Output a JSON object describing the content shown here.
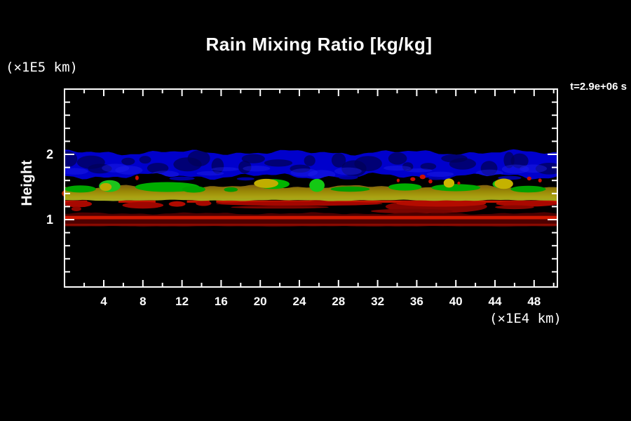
{
  "title": "Rain Mixing Ratio [kg/kg]",
  "timestamp": "t=2.9e+06 s",
  "y_axis": {
    "label": "Height",
    "unit": "(×1E5 km)",
    "range": [
      0,
      3
    ],
    "major_ticks": [
      1,
      2
    ],
    "minor_step": 0.2
  },
  "x_axis": {
    "unit": "(×1E4 km)",
    "range": [
      0,
      50.4
    ],
    "major_ticks": [
      4,
      8,
      12,
      16,
      20,
      24,
      28,
      32,
      36,
      40,
      44,
      48
    ],
    "minor_step": 2
  },
  "chart_data": {
    "type": "heatmap",
    "description": "Horizontal cross-section of rain mixing ratio isosurface bands vs height; x in 1E4 km, height in 1E5 km, at t=2.9e+06 s",
    "title": "Rain Mixing Ratio [kg/kg]",
    "xlabel": "(×1E4 km)",
    "ylabel": "Height (×1E5 km)",
    "x_range": [
      0,
      50.4
    ],
    "y_range": [
      0,
      3
    ],
    "grid": false,
    "legend": "none",
    "bands": [
      {
        "name": "upper-blue-cloud-band",
        "y_top": 2.03,
        "y_bottom": 1.665,
        "color": "#0000cc",
        "dark_mottle": "#000058",
        "bright_mottle": "#2222f0",
        "top_seed": 1,
        "bot_seed": 7,
        "top_amp": 0.05,
        "bot_amp": 0.06
      },
      {
        "name": "mid-olive-yellow-band",
        "y_top": 1.505,
        "y_bottom": 1.295,
        "gradient": [
          "#7e5c10",
          "#998806",
          "#aaa212",
          "#a2aa20"
        ],
        "top_seed": 3,
        "bot_seed": 11,
        "top_amp": 0.032,
        "bot_amp": 0.012
      },
      {
        "name": "lower-dark-red-band",
        "y_top": 1.095,
        "y_bottom": 0.895,
        "color": "#4c0000",
        "top_seed": 5,
        "bot_seed": 9,
        "top_amp": 0.02,
        "bot_amp": 0.006,
        "bright_line": {
          "y_top": 1.057,
          "y_bottom": 1.005,
          "color": "#d01800"
        },
        "second_line": {
          "y_top": 0.938,
          "y_bottom": 0.906,
          "color": "#8a0a00"
        }
      }
    ],
    "red_underline": {
      "y_top": 1.294,
      "y_bottom": 1.26,
      "color": "#c41400",
      "segments": [
        [
          0,
          2.3
        ],
        [
          5.5,
          9.3
        ],
        [
          12.5,
          14.8
        ],
        [
          15.5,
          50.4
        ]
      ]
    },
    "blue_wisps": {
      "color": "#0000b0",
      "items": [
        [
          12,
          1.63,
          1.3,
          0.03
        ],
        [
          18.5,
          1.625,
          0.9,
          0.025
        ],
        [
          29,
          1.645,
          1.0,
          0.03
        ],
        [
          38,
          1.632,
          0.8,
          0.025
        ],
        [
          45.5,
          1.64,
          1.2,
          0.03
        ]
      ]
    },
    "green_patches": [
      [
        1.6,
        1.47,
        1.6,
        0.055,
        "#00a400"
      ],
      [
        4.6,
        1.515,
        1.1,
        0.09,
        "#1cc41c"
      ],
      [
        10.5,
        1.5,
        3.3,
        0.075,
        "#00ac00"
      ],
      [
        13.2,
        1.465,
        1.2,
        0.05,
        "#00a400"
      ],
      [
        17.0,
        1.46,
        0.7,
        0.035,
        "#009800"
      ],
      [
        21.3,
        1.545,
        1.7,
        0.075,
        "#00b400"
      ],
      [
        25.8,
        1.525,
        0.78,
        0.1,
        "#14c814"
      ],
      [
        29.2,
        1.468,
        2.0,
        0.04,
        "#009c00"
      ],
      [
        34.8,
        1.5,
        1.7,
        0.055,
        "#00ae00"
      ],
      [
        40.0,
        1.49,
        2.5,
        0.055,
        "#00a800"
      ],
      [
        44.6,
        1.545,
        0.85,
        0.065,
        "#12bc12"
      ],
      [
        47.4,
        1.468,
        1.8,
        0.05,
        "#00a000"
      ]
    ],
    "yellow_patches": [
      [
        20.6,
        1.555,
        1.25,
        0.07,
        "#c0ae00"
      ],
      [
        39.3,
        1.56,
        0.55,
        0.07,
        "#ccb800"
      ],
      [
        44.9,
        1.55,
        0.95,
        0.08,
        "#c4b200"
      ],
      [
        4.2,
        1.5,
        0.6,
        0.06,
        "#bca800"
      ]
    ],
    "red_specks": {
      "color": "#cc1000",
      "items": [
        [
          7.4,
          1.64,
          0.18,
          0.035
        ],
        [
          34.1,
          1.6,
          0.15,
          0.027
        ],
        [
          35.6,
          1.62,
          0.26,
          0.03
        ],
        [
          36.6,
          1.655,
          0.3,
          0.035
        ],
        [
          37.4,
          1.585,
          0.2,
          0.03
        ],
        [
          40.3,
          1.558,
          0.15,
          0.025
        ],
        [
          47.5,
          1.63,
          0.22,
          0.03
        ],
        [
          48.6,
          1.6,
          0.18,
          0.03
        ]
      ]
    },
    "red_patches": [
      [
        1.4,
        1.24,
        1.4,
        0.05,
        "#a80800"
      ],
      [
        1.2,
        1.165,
        0.5,
        0.035,
        "#900600"
      ],
      [
        0.7,
        1.4,
        1.0,
        0.075,
        "#c03000"
      ],
      [
        8.0,
        1.22,
        2.1,
        0.05,
        "#a00600"
      ],
      [
        11.5,
        1.24,
        0.85,
        0.042,
        "#b00a00"
      ],
      [
        14.2,
        1.25,
        0.8,
        0.04,
        "#a80800"
      ],
      [
        24.0,
        1.245,
        8.5,
        0.033,
        "#a40600"
      ],
      [
        22.0,
        1.19,
        5.0,
        0.022,
        "#7c0400"
      ],
      [
        26.0,
        1.3,
        1.0,
        0.02,
        "#980600"
      ],
      [
        38.0,
        1.2,
        5.2,
        0.1,
        "#860400"
      ],
      [
        38.5,
        1.25,
        4.6,
        0.05,
        "#b40c00"
      ],
      [
        35.5,
        1.13,
        4.2,
        0.035,
        "#780400"
      ],
      [
        47.3,
        1.245,
        3.2,
        0.045,
        "#aa0800"
      ],
      [
        46.0,
        1.19,
        2.0,
        0.03,
        "#8a0600"
      ]
    ]
  }
}
